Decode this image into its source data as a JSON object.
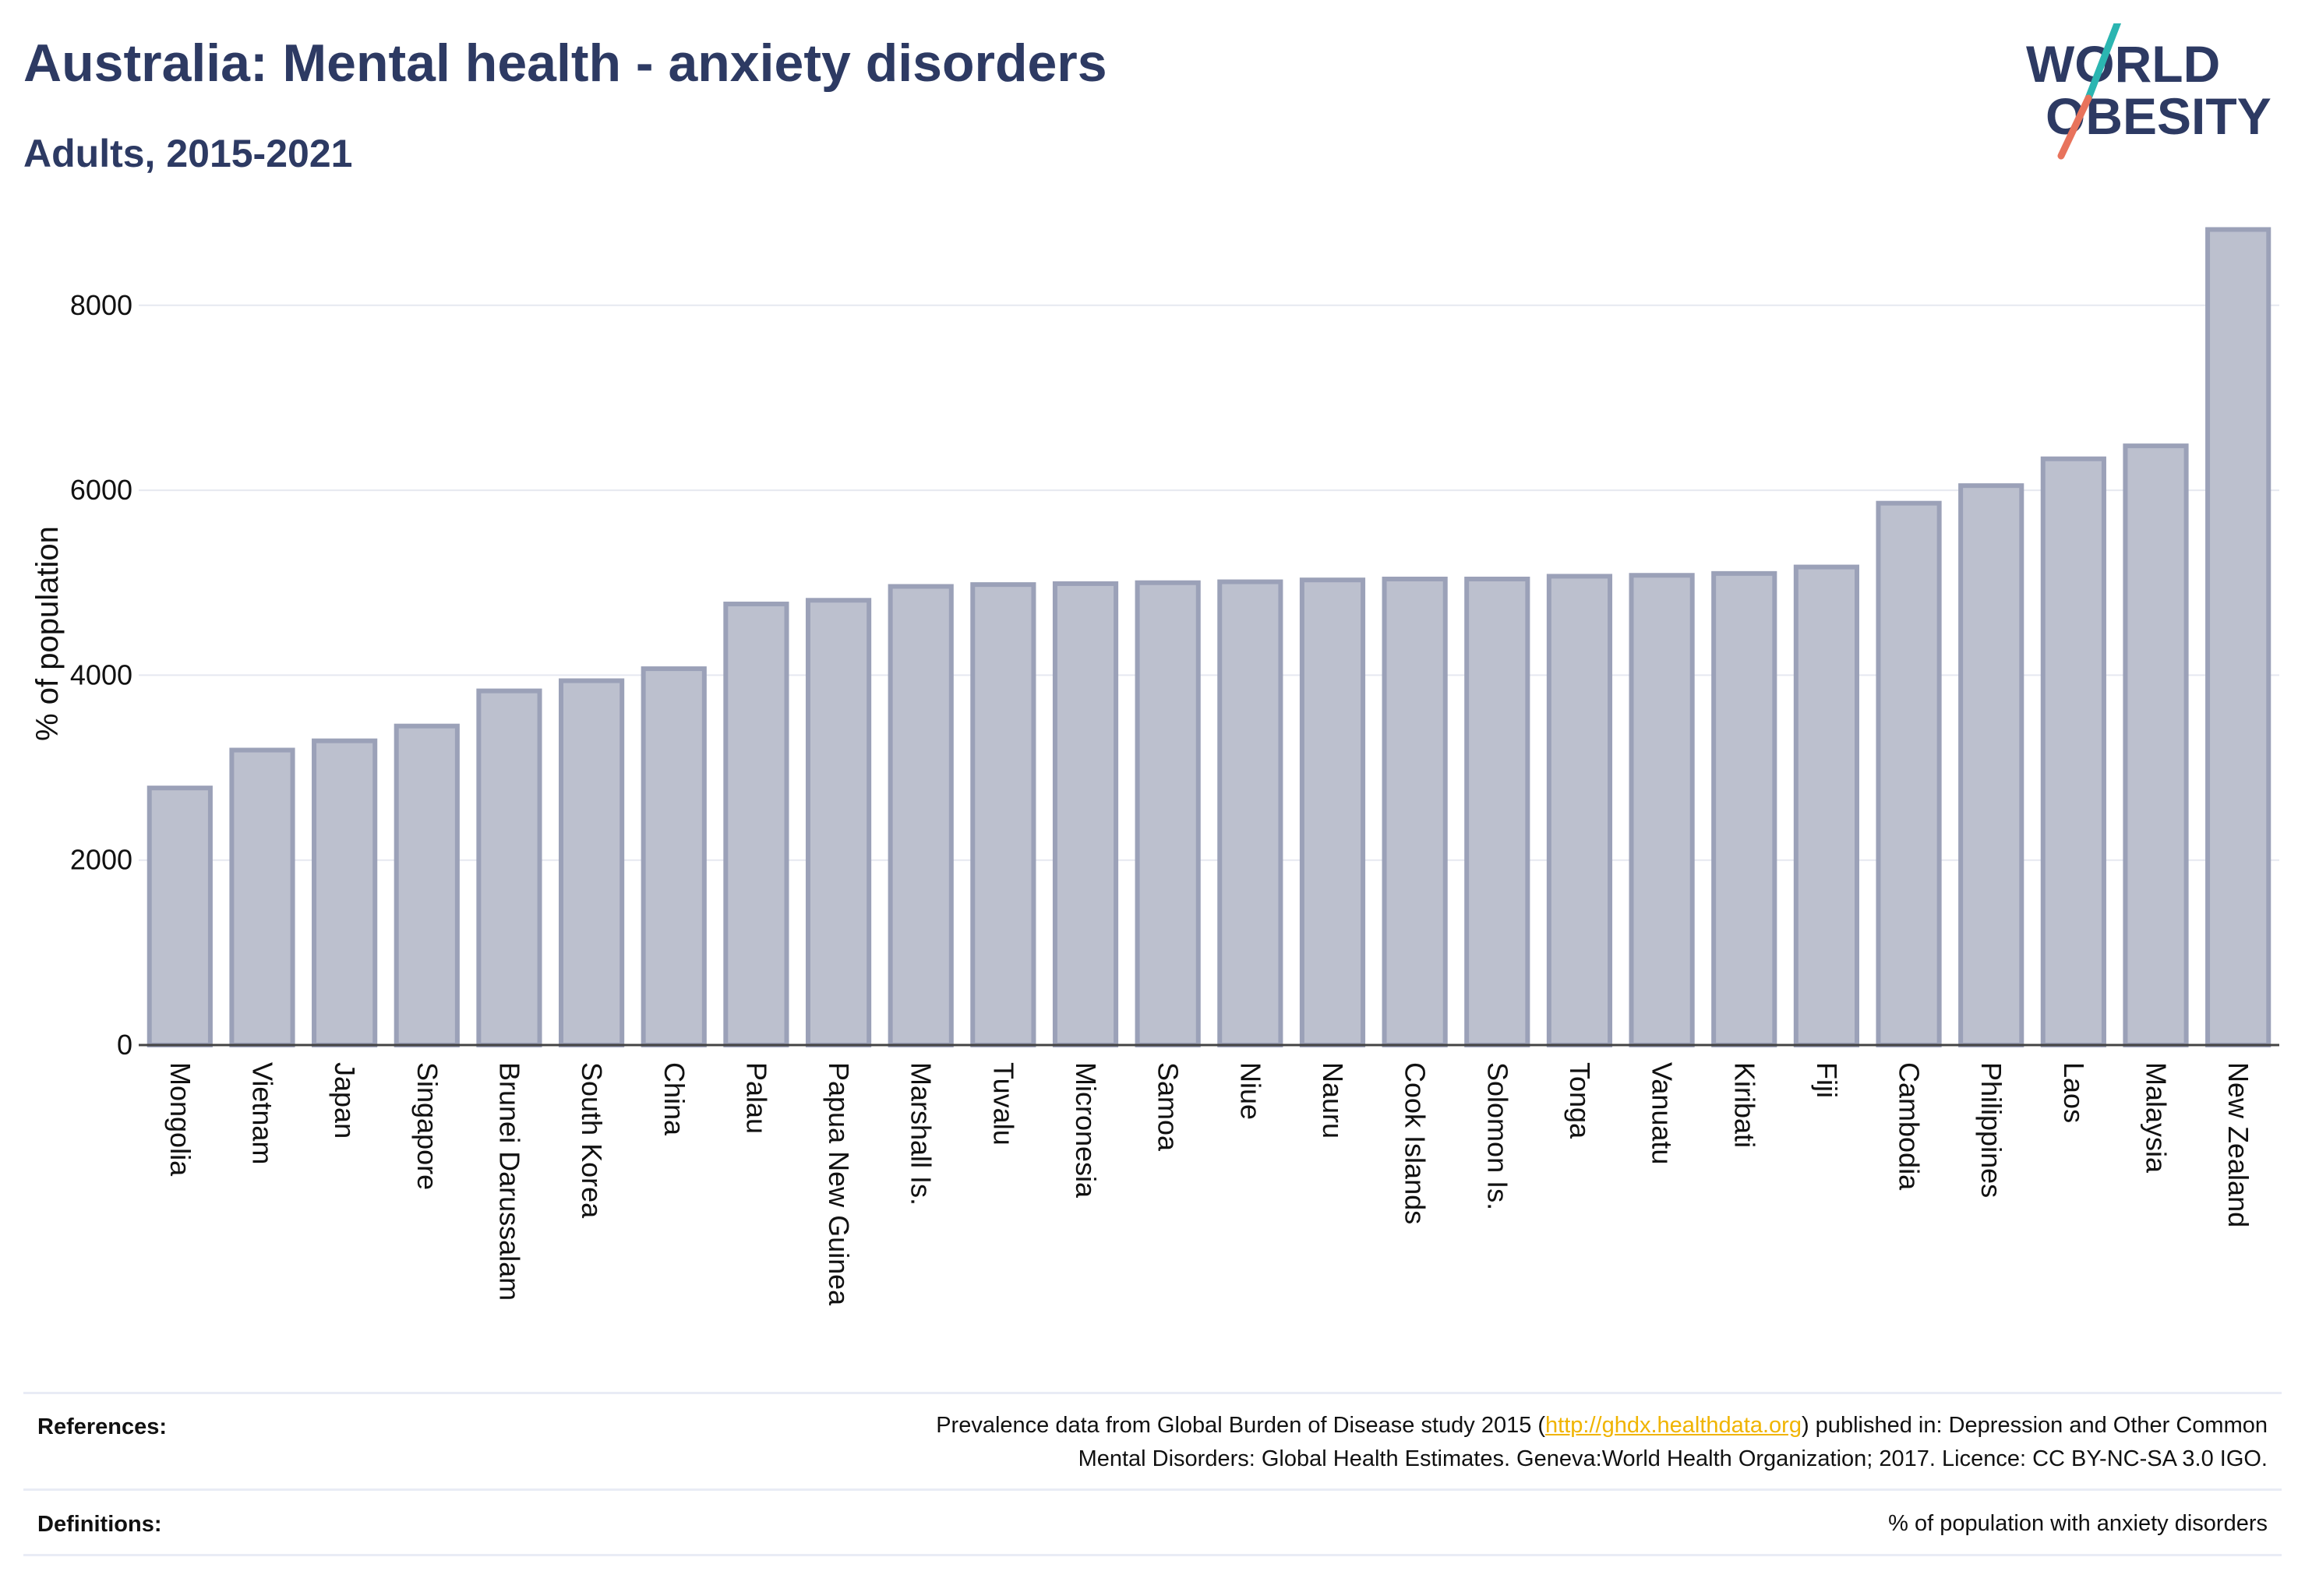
{
  "header": {
    "title": "Australia: Mental health - anxiety disorders",
    "subtitle": "Adults, 2015-2021"
  },
  "logo": {
    "line1": "WORLD",
    "line2": "OBESITY",
    "colors": {
      "text": "#2d3a63",
      "slash_top": "#2bb5b1",
      "slash_bottom": "#e8735c"
    }
  },
  "chart_data": {
    "type": "bar",
    "ylabel": "% of population",
    "xlabel": "",
    "ylim": [
      0,
      8900
    ],
    "yticks": [
      0,
      2000,
      4000,
      6000,
      8000
    ],
    "grid": true,
    "bar_color": "#bcc0ce",
    "bar_edge_color": "#9ba1b8",
    "categories": [
      "Mongolia",
      "Vietnam",
      "Japan",
      "Singapore",
      "Brunei Darussalam",
      "South Korea",
      "China",
      "Palau",
      "Papua New Guinea",
      "Marshall Is.",
      "Tuvalu",
      "Micronesia",
      "Samoa",
      "Niue",
      "Nauru",
      "Cook Islands",
      "Solomon Is.",
      "Tonga",
      "Vanuatu",
      "Kiribati",
      "Fiji",
      "Cambodia",
      "Philippines",
      "Laos",
      "Malaysia",
      "New Zealand"
    ],
    "values": [
      2780,
      3190,
      3290,
      3450,
      3830,
      3940,
      4070,
      4770,
      4810,
      4960,
      4980,
      4990,
      5000,
      5010,
      5030,
      5040,
      5040,
      5070,
      5080,
      5100,
      5170,
      5860,
      6050,
      6340,
      6480,
      8820
    ]
  },
  "footer": {
    "references_label": "References:",
    "references_line1_before": "Prevalence data from Global Burden of Disease study 2015 (",
    "references_link": "http://ghdx.healthdata.org",
    "references_line1_after": ") published in: Depression and Other Common",
    "references_line2": "Mental Disorders: Global Health Estimates. Geneva:World Health Organization; 2017. Licence: CC BY-NC-SA 3.0 IGO.",
    "definitions_label": "Definitions:",
    "definitions_text": "% of population with anxiety disorders"
  }
}
